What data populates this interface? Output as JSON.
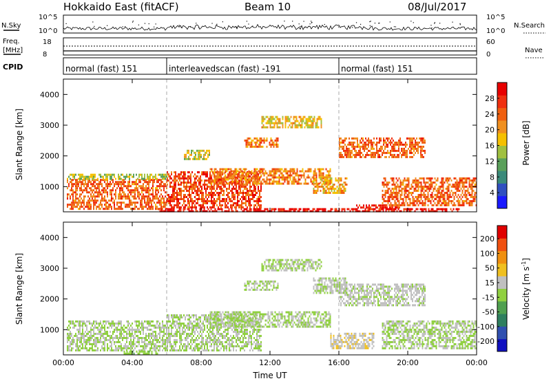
{
  "header": {
    "station": "Hokkaido East (fitACF)",
    "beam": "Beam 10",
    "date": "08/Jul/2017"
  },
  "top_panels": {
    "nsky_label": "N.Sky",
    "nsearch_label": "N.Search",
    "nsky_ticks": [
      "10^5",
      "10^0"
    ],
    "nsearch_ticks": [
      "10^5",
      "10^0"
    ],
    "freq_label_1": "Freq.",
    "freq_label_2": "[MHz]",
    "freq_ticks": [
      "18",
      "8"
    ],
    "nave_label": "Nave",
    "nave_ticks": [
      "60",
      "0"
    ],
    "cpid_label": "CPID",
    "cpid_segments": [
      {
        "label": "normal (fast) 151",
        "start_h": 0,
        "end_h": 6
      },
      {
        "label": "interleavedscan (fast) -191",
        "start_h": 6,
        "end_h": 16
      },
      {
        "label": "normal (fast) 151",
        "start_h": 16,
        "end_h": 24
      }
    ]
  },
  "chart_data": [
    {
      "type": "heatmap",
      "name": "power",
      "xlabel": "",
      "ylabel": "Slant Range [km]",
      "xlim": [
        0,
        24
      ],
      "ylim": [
        180,
        4500
      ],
      "x_ticks": [
        "00:00",
        "04:00",
        "08:00",
        "12:00",
        "16:00",
        "20:00",
        "00:00"
      ],
      "y_ticks": [
        1000,
        2000,
        3000,
        4000
      ],
      "colorbar": {
        "label": "Power [dB]",
        "ticks": [
          4,
          8,
          12,
          16,
          20,
          24,
          28
        ],
        "range": [
          0,
          32
        ],
        "colors": [
          "#1a1aff",
          "#3050c0",
          "#3a8a7a",
          "#5aa05a",
          "#a0c040",
          "#f5c000",
          "#f09020",
          "#f06010",
          "#f03010",
          "#e80000"
        ]
      },
      "echo_regions": [
        {
          "t": [
            0.2,
            6.0
          ],
          "r": [
            300,
            1250
          ],
          "value": 24
        },
        {
          "t": [
            0.2,
            6.0
          ],
          "r": [
            1250,
            1420
          ],
          "value": 14
        },
        {
          "t": [
            6.0,
            11.5
          ],
          "r": [
            300,
            1500
          ],
          "value": 26
        },
        {
          "t": [
            7.0,
            8.5
          ],
          "r": [
            1900,
            2200
          ],
          "value": 16
        },
        {
          "t": [
            8.5,
            15.5
          ],
          "r": [
            1100,
            1600
          ],
          "value": 22
        },
        {
          "t": [
            10.5,
            12.5
          ],
          "r": [
            2300,
            2600
          ],
          "value": 22
        },
        {
          "t": [
            11.5,
            15.0
          ],
          "r": [
            2900,
            3300
          ],
          "value": 18
        },
        {
          "t": [
            14.5,
            16.5
          ],
          "r": [
            800,
            1300
          ],
          "value": 20
        },
        {
          "t": [
            16.0,
            21.0
          ],
          "r": [
            1950,
            2600
          ],
          "value": 24
        },
        {
          "t": [
            17.0,
            19.5
          ],
          "r": [
            300,
            420
          ],
          "value": 28
        },
        {
          "t": [
            18.5,
            24.0
          ],
          "r": [
            400,
            1300
          ],
          "value": 24
        },
        {
          "t": [
            5.5,
            23.0
          ],
          "r": [
            190,
            300
          ],
          "value": 30
        }
      ]
    },
    {
      "type": "heatmap",
      "name": "velocity",
      "xlabel": "Time UT",
      "ylabel": "Slant Range [km]",
      "xlim": [
        0,
        24
      ],
      "ylim": [
        180,
        4500
      ],
      "x_ticks": [
        "00:00",
        "04:00",
        "08:00",
        "12:00",
        "16:00",
        "20:00",
        "00:00"
      ],
      "y_ticks": [
        1000,
        2000,
        3000,
        4000
      ],
      "colorbar": {
        "label": "Velocity [m s^-1]",
        "ticks": [
          200,
          100,
          50,
          15,
          -15,
          -50,
          -100,
          -200
        ],
        "range": [
          -250,
          250
        ],
        "colors": [
          "#1010c0",
          "#3050b0",
          "#2f7f5f",
          "#50a050",
          "#90d040",
          "#c0c0c0",
          "#f0c020",
          "#f09010",
          "#f05010",
          "#e00000"
        ]
      },
      "echo_regions": [
        {
          "t": [
            0.2,
            6.0
          ],
          "r": [
            300,
            1300
          ],
          "value": 0
        },
        {
          "t": [
            6.0,
            11.5
          ],
          "r": [
            300,
            1500
          ],
          "value": 0
        },
        {
          "t": [
            3.5,
            5.5
          ],
          "r": [
            190,
            320
          ],
          "value": -40
        },
        {
          "t": [
            8.5,
            15.5
          ],
          "r": [
            1100,
            1600
          ],
          "value": 0
        },
        {
          "t": [
            10.5,
            12.5
          ],
          "r": [
            2300,
            2600
          ],
          "value": 0
        },
        {
          "t": [
            14.5,
            16.5
          ],
          "r": [
            2200,
            2700
          ],
          "value": 5
        },
        {
          "t": [
            16.0,
            21.0
          ],
          "r": [
            1800,
            2500
          ],
          "value": 8
        },
        {
          "t": [
            15.5,
            18.0
          ],
          "r": [
            400,
            900
          ],
          "value": 45
        },
        {
          "t": [
            18.5,
            24.0
          ],
          "r": [
            400,
            1300
          ],
          "value": 0
        },
        {
          "t": [
            11.5,
            15.0
          ],
          "r": [
            2900,
            3300
          ],
          "value": 0
        }
      ]
    }
  ]
}
